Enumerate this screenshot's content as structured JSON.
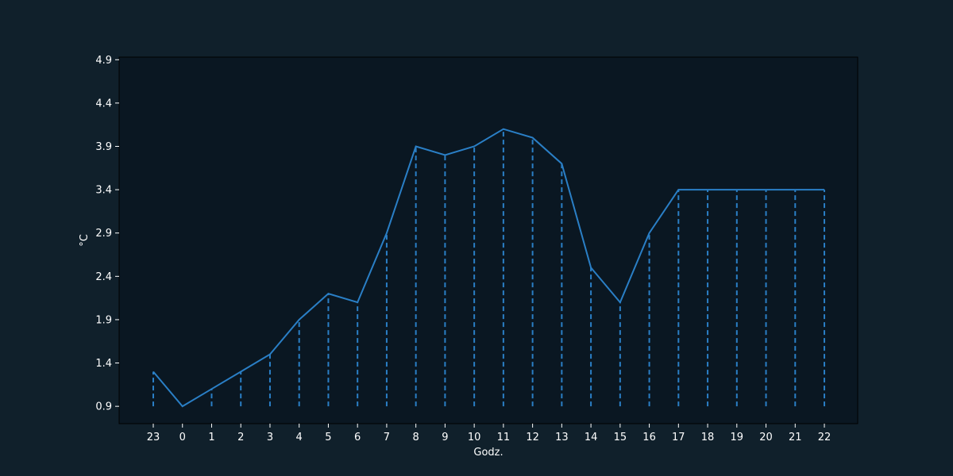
{
  "colors": {
    "page_background": "#10202b",
    "plot_background": "#0a1722",
    "line": "#2a7fc6",
    "text": "#ffffff",
    "axis": "#000000"
  },
  "chart_data": {
    "type": "line",
    "title": "",
    "xlabel": "Godz.",
    "ylabel": "°C",
    "categories": [
      "23",
      "0",
      "1",
      "2",
      "3",
      "4",
      "5",
      "6",
      "7",
      "8",
      "9",
      "10",
      "11",
      "12",
      "13",
      "14",
      "15",
      "16",
      "17",
      "18",
      "19",
      "20",
      "21",
      "22"
    ],
    "series": [
      {
        "values": [
          1.3,
          0.9,
          1.1,
          1.3,
          1.5,
          1.9,
          2.2,
          2.1,
          2.9,
          3.9,
          3.8,
          3.9,
          4.1,
          4.0,
          3.7,
          2.5,
          2.1,
          2.9,
          3.4,
          3.4,
          3.4,
          3.4,
          3.4,
          3.4
        ]
      }
    ],
    "drop_lines": "dashed vertical lines from each point to y=0.9",
    "yticks": [
      "0.9",
      "1.4",
      "1.9",
      "2.4",
      "2.9",
      "3.4",
      "3.9",
      "4.4",
      "4.9"
    ],
    "ylim": [
      0.7,
      4.93
    ],
    "grid": false,
    "legend": "none"
  }
}
